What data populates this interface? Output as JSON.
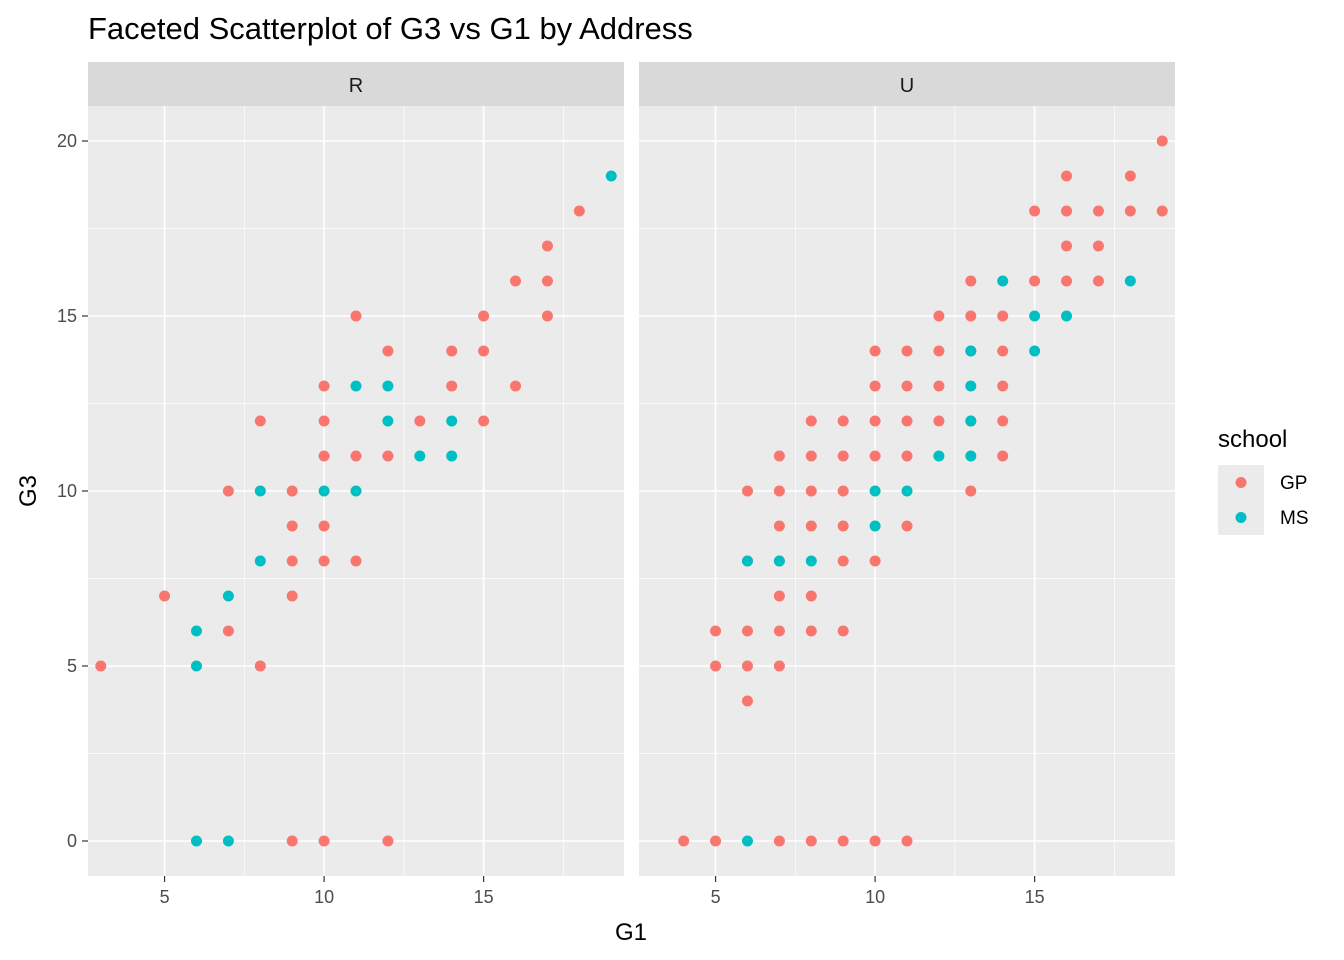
{
  "chart_data": {
    "type": "scatter",
    "title": "Faceted Scatterplot of G3 vs G1 by Address",
    "xlabel": "G1",
    "ylabel": "G3",
    "xlim": [
      2.6,
      19.4
    ],
    "ylim": [
      -1,
      21
    ],
    "x_ticks": [
      5,
      10,
      15
    ],
    "y_ticks": [
      0,
      5,
      10,
      15,
      20
    ],
    "grid": true,
    "legend": {
      "title": "school",
      "position": "right",
      "entries": [
        {
          "label": "GP",
          "color": "#F8766D"
        },
        {
          "label": "MS",
          "color": "#00BFC4"
        }
      ]
    },
    "facets": [
      {
        "label": "R",
        "series": [
          {
            "name": "GP",
            "points": [
              [
                3,
                5
              ],
              [
                5,
                7
              ],
              [
                7,
                10
              ],
              [
                7,
                6
              ],
              [
                8,
                12
              ],
              [
                8,
                5
              ],
              [
                9,
                10
              ],
              [
                9,
                9
              ],
              [
                9,
                8
              ],
              [
                9,
                7
              ],
              [
                9,
                0
              ],
              [
                10,
                13
              ],
              [
                10,
                12
              ],
              [
                10,
                11
              ],
              [
                10,
                9
              ],
              [
                10,
                8
              ],
              [
                10,
                0
              ],
              [
                11,
                15
              ],
              [
                11,
                11
              ],
              [
                11,
                8
              ],
              [
                12,
                14
              ],
              [
                12,
                11
              ],
              [
                12,
                0
              ],
              [
                13,
                12
              ],
              [
                14,
                14
              ],
              [
                14,
                13
              ],
              [
                15,
                15
              ],
              [
                15,
                14
              ],
              [
                15,
                12
              ],
              [
                16,
                16
              ],
              [
                16,
                13
              ],
              [
                17,
                17
              ],
              [
                17,
                16
              ],
              [
                17,
                15
              ],
              [
                18,
                18
              ]
            ]
          },
          {
            "name": "MS",
            "points": [
              [
                6,
                6
              ],
              [
                6,
                5
              ],
              [
                6,
                0
              ],
              [
                7,
                7
              ],
              [
                7,
                0
              ],
              [
                8,
                10
              ],
              [
                8,
                8
              ],
              [
                10,
                10
              ],
              [
                11,
                13
              ],
              [
                11,
                10
              ],
              [
                12,
                13
              ],
              [
                12,
                12
              ],
              [
                13,
                11
              ],
              [
                14,
                12
              ],
              [
                14,
                11
              ],
              [
                19,
                19
              ]
            ]
          }
        ]
      },
      {
        "label": "U",
        "series": [
          {
            "name": "GP",
            "points": [
              [
                4,
                0
              ],
              [
                5,
                6
              ],
              [
                5,
                5
              ],
              [
                5,
                0
              ],
              [
                6,
                10
              ],
              [
                6,
                8
              ],
              [
                6,
                6
              ],
              [
                6,
                5
              ],
              [
                6,
                4
              ],
              [
                7,
                11
              ],
              [
                7,
                10
              ],
              [
                7,
                9
              ],
              [
                7,
                8
              ],
              [
                7,
                7
              ],
              [
                7,
                6
              ],
              [
                7,
                5
              ],
              [
                7,
                0
              ],
              [
                8,
                12
              ],
              [
                8,
                11
              ],
              [
                8,
                10
              ],
              [
                8,
                9
              ],
              [
                8,
                7
              ],
              [
                8,
                6
              ],
              [
                8,
                0
              ],
              [
                9,
                12
              ],
              [
                9,
                11
              ],
              [
                9,
                10
              ],
              [
                9,
                9
              ],
              [
                9,
                8
              ],
              [
                9,
                6
              ],
              [
                9,
                0
              ],
              [
                10,
                14
              ],
              [
                10,
                13
              ],
              [
                10,
                12
              ],
              [
                10,
                11
              ],
              [
                10,
                8
              ],
              [
                10,
                0
              ],
              [
                11,
                14
              ],
              [
                11,
                13
              ],
              [
                11,
                12
              ],
              [
                11,
                11
              ],
              [
                11,
                9
              ],
              [
                11,
                0
              ],
              [
                12,
                15
              ],
              [
                12,
                14
              ],
              [
                12,
                13
              ],
              [
                12,
                12
              ],
              [
                13,
                16
              ],
              [
                13,
                15
              ],
              [
                13,
                14
              ],
              [
                13,
                12
              ],
              [
                13,
                10
              ],
              [
                14,
                15
              ],
              [
                14,
                14
              ],
              [
                14,
                13
              ],
              [
                14,
                12
              ],
              [
                14,
                11
              ],
              [
                15,
                18
              ],
              [
                15,
                16
              ],
              [
                16,
                19
              ],
              [
                16,
                18
              ],
              [
                16,
                17
              ],
              [
                16,
                16
              ],
              [
                17,
                18
              ],
              [
                17,
                17
              ],
              [
                17,
                16
              ],
              [
                18,
                19
              ],
              [
                18,
                18
              ],
              [
                19,
                20
              ],
              [
                19,
                18
              ]
            ]
          },
          {
            "name": "MS",
            "points": [
              [
                6,
                8
              ],
              [
                6,
                0
              ],
              [
                7,
                8
              ],
              [
                8,
                8
              ],
              [
                10,
                10
              ],
              [
                10,
                9
              ],
              [
                11,
                10
              ],
              [
                12,
                11
              ],
              [
                13,
                14
              ],
              [
                13,
                13
              ],
              [
                13,
                12
              ],
              [
                13,
                11
              ],
              [
                14,
                16
              ],
              [
                15,
                15
              ],
              [
                15,
                14
              ],
              [
                16,
                15
              ],
              [
                18,
                16
              ]
            ]
          }
        ]
      }
    ]
  }
}
